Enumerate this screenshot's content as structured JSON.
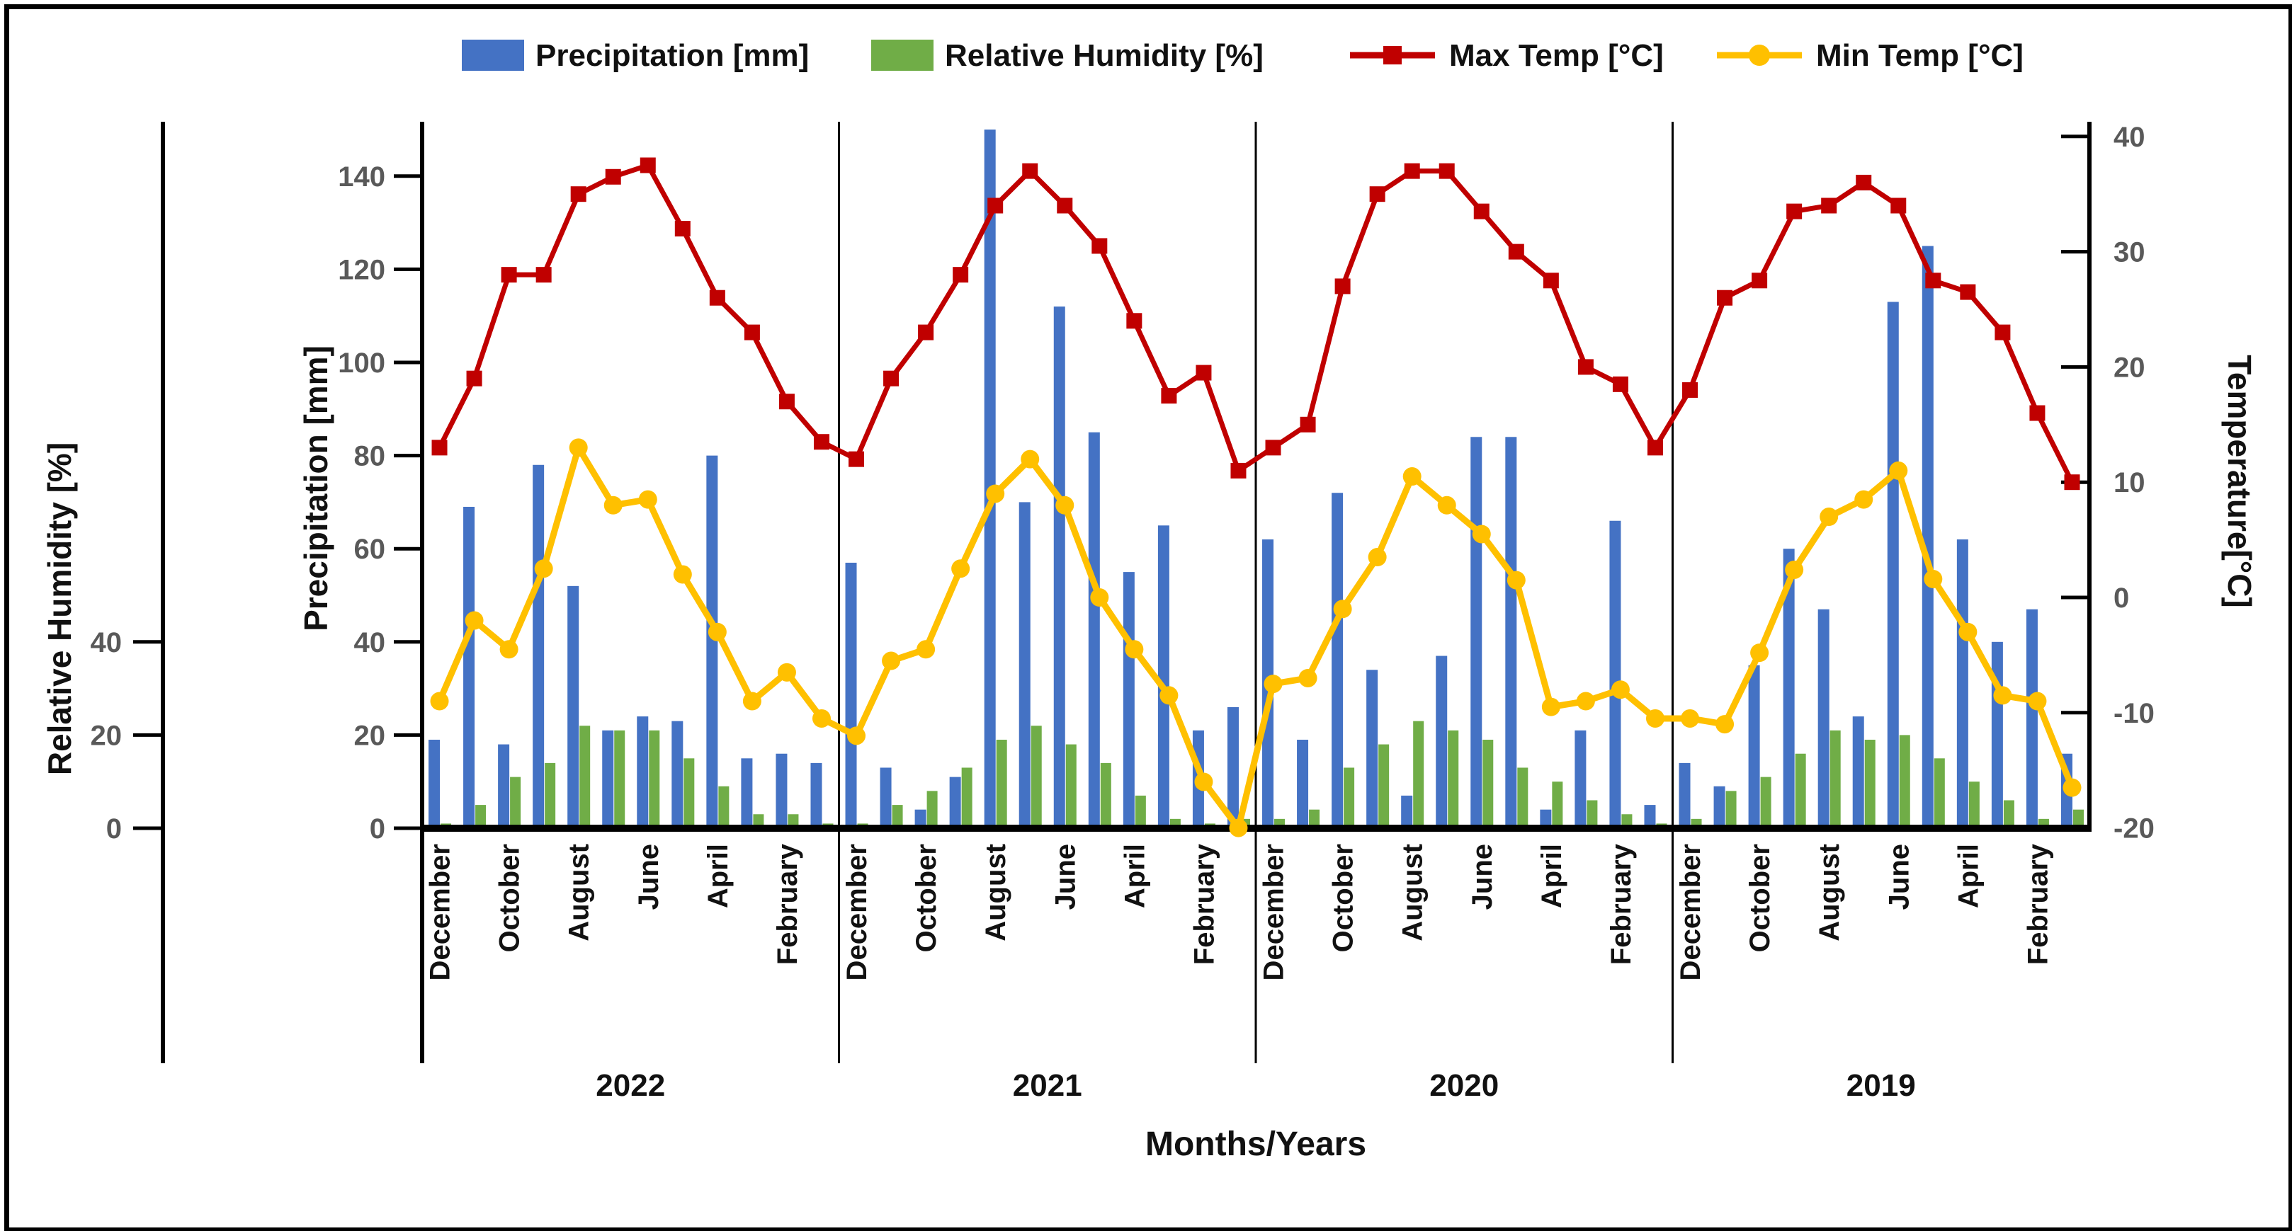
{
  "chart_data": {
    "type": "combo-bar-line",
    "xlabel": "Months/Years",
    "year_groups": [
      "2022",
      "2021",
      "2020",
      "2019"
    ],
    "month_tick_labels": [
      "December",
      "October",
      "August",
      "June",
      "April",
      "February"
    ],
    "months_per_group": 12,
    "month_order_note": "each year group runs December (left) to January (right)",
    "left_axis2": {
      "title": "Relative Humidity [%]",
      "ticks": [
        40,
        20,
        0
      ]
    },
    "left_axis1": {
      "title": "Precipitation [mm]",
      "ticks": [
        140,
        120,
        100,
        80,
        60,
        40,
        20,
        0
      ],
      "ylim": [
        0,
        150
      ]
    },
    "right_axis": {
      "title": "Temperature[°C]",
      "ticks": [
        40,
        30,
        20,
        10,
        0,
        -10,
        -20
      ],
      "ylim": [
        -20,
        40
      ]
    },
    "legend": [
      {
        "label": "Precipitation [mm]",
        "swatch": "bar",
        "color": "#4472C4"
      },
      {
        "label": "Relative Humidity [%]",
        "swatch": "bar",
        "color": "#70AD47"
      },
      {
        "label": "Max Temp [°C]",
        "swatch": "line-square",
        "color": "#C00000"
      },
      {
        "label": "Min Temp [°C]",
        "swatch": "line-circle",
        "color": "#FFC000"
      }
    ],
    "series": [
      {
        "name": "Precipitation [mm]",
        "type": "bar",
        "color": "#4472C4",
        "axis": "precip",
        "values": [
          19,
          69,
          18,
          78,
          52,
          21,
          24,
          23,
          80,
          15,
          16,
          14,
          57,
          13,
          4,
          11,
          150,
          70,
          112,
          85,
          55,
          65,
          21,
          26,
          62,
          19,
          72,
          34,
          7,
          37,
          84,
          84,
          4,
          21,
          66,
          5,
          14,
          9,
          35,
          60,
          47,
          24,
          113,
          125,
          62,
          40,
          47,
          16
        ]
      },
      {
        "name": "Relative Humidity [%]",
        "type": "bar",
        "color": "#70AD47",
        "axis": "humidity",
        "values": [
          1,
          5,
          11,
          14,
          22,
          21,
          21,
          15,
          9,
          3,
          3,
          1,
          1,
          5,
          8,
          13,
          19,
          22,
          18,
          14,
          7,
          2,
          1,
          2,
          2,
          4,
          13,
          18,
          23,
          21,
          19,
          13,
          10,
          6,
          3,
          1,
          2,
          8,
          11,
          16,
          21,
          19,
          20,
          15,
          10,
          6,
          2,
          4
        ]
      },
      {
        "name": "Max Temp [°C]",
        "type": "line",
        "color": "#C00000",
        "marker": "square",
        "axis": "temp",
        "values": [
          13,
          19,
          28,
          28,
          35,
          36.5,
          37.5,
          32,
          26,
          23,
          17,
          13.5,
          12,
          19,
          23,
          28,
          34,
          37,
          34,
          30.5,
          24,
          17.5,
          19.5,
          11,
          13,
          15,
          27,
          35,
          37,
          37,
          33.5,
          30,
          27.5,
          20,
          18.5,
          13,
          18,
          26,
          27.5,
          33.5,
          34,
          36,
          34,
          27.5,
          26.5,
          23,
          16,
          10
        ]
      },
      {
        "name": "Min Temp [°C]",
        "type": "line",
        "color": "#FFC000",
        "marker": "circle",
        "axis": "temp",
        "values": [
          -9,
          -2,
          -4.5,
          2.5,
          13,
          8,
          8.5,
          2,
          -3,
          -9,
          -6.5,
          -10.5,
          -12,
          -5.5,
          -4.5,
          2.5,
          9,
          12,
          8,
          0,
          -4.5,
          -8.5,
          -16,
          -20,
          -7.5,
          -7,
          -1,
          3.5,
          10.5,
          8,
          5.5,
          1.5,
          -9.5,
          -9,
          -8,
          -10.5,
          -10.5,
          -11,
          -4.8,
          2.4,
          7,
          8.5,
          11,
          1.6,
          -3,
          -8.5,
          -9,
          -16.5
        ]
      }
    ],
    "colors": {
      "precipitation": "#4472C4",
      "humidity": "#70AD47",
      "max_temp": "#C00000",
      "min_temp": "#FFC000",
      "axis_line": "#000000",
      "tick_label": "#595959",
      "text": "#111111"
    }
  }
}
